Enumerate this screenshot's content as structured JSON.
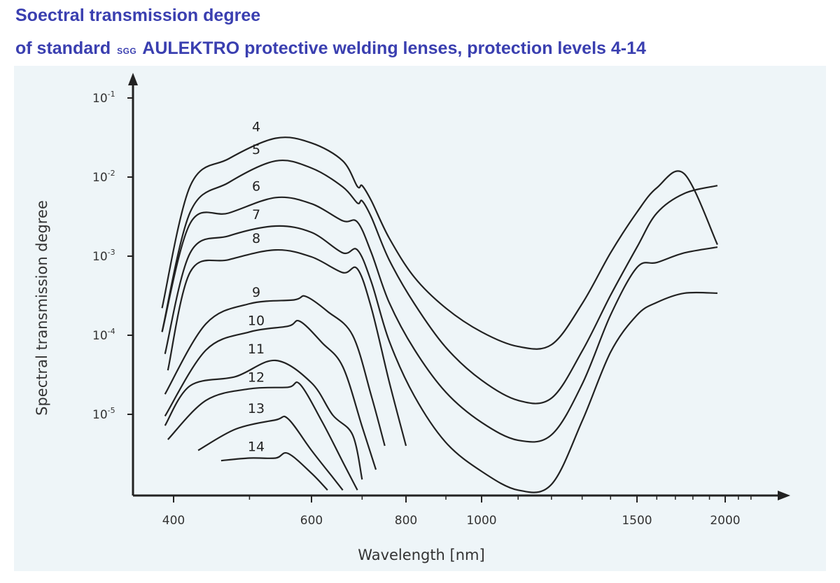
{
  "title_line1": "Soectral transmission degree",
  "title_line2_prefix": "of standard",
  "title_line2_brand_small": "SGG",
  "title_line2_rest": "AULEKTRO protective welding lenses, protection levels 4-14",
  "colors": {
    "title": "#3a3fb0",
    "panel": "#eef5f8",
    "curves": "#222222"
  },
  "chart_data": {
    "type": "line",
    "xlabel": "Wavelength [nm]",
    "ylabel": "Spectral transmission  degree",
    "x_scale": "log",
    "y_scale": "log",
    "x_ticks": [
      400,
      600,
      800,
      1000,
      1500,
      2000
    ],
    "x_tick_labels": [
      "400",
      "600",
      "800",
      "1000",
      "1500",
      "2000"
    ],
    "y_ticks": [
      0.1,
      0.01,
      0.001,
      0.0001,
      1e-05
    ],
    "y_tick_labels": [
      "10-1",
      "10-2",
      "10-3",
      "10-4",
      "10-5"
    ],
    "xlim": [
      350,
      2300
    ],
    "ylim": [
      1e-06,
      0.15
    ],
    "series": [
      {
        "name": "4",
        "points": [
          [
            380,
            0.00022
          ],
          [
            420,
            0.0077
          ],
          [
            470,
            0.017
          ],
          [
            540,
            0.031
          ],
          [
            600,
            0.027
          ],
          [
            660,
            0.016
          ],
          [
            690,
            0.0076
          ],
          [
            700,
            0.0078
          ],
          [
            720,
            0.005
          ],
          [
            760,
            0.0017
          ],
          [
            820,
            0.00054
          ],
          [
            900,
            0.00022
          ],
          [
            1000,
            0.00011
          ],
          [
            1100,
            7.2e-05
          ],
          [
            1200,
            7.6e-05
          ],
          [
            1300,
            0.00025
          ],
          [
            1400,
            0.0011
          ],
          [
            1500,
            0.0036
          ],
          [
            1600,
            0.0073
          ],
          [
            1750,
            0.011
          ],
          [
            1950,
            0.0014
          ]
        ]
      },
      {
        "name": "5",
        "points": [
          [
            380,
            0.00011
          ],
          [
            420,
            0.0036
          ],
          [
            470,
            0.0085
          ],
          [
            540,
            0.016
          ],
          [
            600,
            0.013
          ],
          [
            660,
            0.0075
          ],
          [
            690,
            0.0047
          ],
          [
            700,
            0.005
          ],
          [
            720,
            0.0031
          ],
          [
            760,
            0.0009
          ],
          [
            820,
            0.00025
          ],
          [
            900,
            7e-05
          ],
          [
            1000,
            2.7e-05
          ],
          [
            1100,
            1.5e-05
          ],
          [
            1200,
            1.6e-05
          ],
          [
            1300,
            6.3e-05
          ],
          [
            1400,
            0.00032
          ],
          [
            1500,
            0.0013
          ],
          [
            1600,
            0.0035
          ],
          [
            1750,
            0.0062
          ],
          [
            1950,
            0.0078
          ]
        ]
      },
      {
        "name": "6",
        "points": [
          [
            380,
            0.00011
          ],
          [
            420,
            0.0026
          ],
          [
            470,
            0.0035
          ],
          [
            540,
            0.0055
          ],
          [
            600,
            0.0046
          ],
          [
            660,
            0.0028
          ],
          [
            690,
            0.0027
          ],
          [
            720,
            0.0011
          ],
          [
            760,
            0.00026
          ],
          [
            820,
            6.6e-05
          ],
          [
            900,
            1.9e-05
          ],
          [
            1000,
            7.9e-06
          ],
          [
            1100,
            4.7e-06
          ],
          [
            1200,
            5.5e-06
          ],
          [
            1300,
            2.4e-05
          ],
          [
            1400,
            0.00018
          ],
          [
            1500,
            0.00072
          ],
          [
            1600,
            0.00083
          ],
          [
            1750,
            0.0011
          ],
          [
            1950,
            0.0013
          ]
        ]
      },
      {
        "name": "7",
        "points": [
          [
            385,
            5.8e-05
          ],
          [
            420,
            0.0011
          ],
          [
            470,
            0.0018
          ],
          [
            540,
            0.0024
          ],
          [
            600,
            0.002
          ],
          [
            660,
            0.0011
          ],
          [
            690,
            0.0012
          ],
          [
            720,
            0.00047
          ],
          [
            760,
            8.5e-05
          ],
          [
            820,
            1.7e-05
          ],
          [
            900,
            4.4e-06
          ],
          [
            1000,
            1.9e-06
          ],
          [
            1100,
            1.1e-06
          ],
          [
            1200,
            1.3e-06
          ],
          [
            1300,
            8.2e-06
          ],
          [
            1400,
            6.1e-05
          ],
          [
            1500,
            0.00018
          ],
          [
            1600,
            0.00026
          ],
          [
            1750,
            0.00034
          ],
          [
            1950,
            0.00034
          ]
        ]
      },
      {
        "name": "8",
        "points": [
          [
            390,
            3.6e-05
          ],
          [
            420,
            0.00063
          ],
          [
            470,
            0.0009
          ],
          [
            540,
            0.0012
          ],
          [
            600,
            0.00098
          ],
          [
            660,
            0.00062
          ],
          [
            690,
            0.00069
          ],
          [
            720,
            0.00022
          ],
          [
            760,
            2.6e-05
          ],
          [
            800,
            4e-06
          ]
        ]
      },
      {
        "name": "9",
        "points": [
          [
            385,
            1.8e-05
          ],
          [
            440,
            0.00014
          ],
          [
            500,
            0.00025
          ],
          [
            570,
            0.00028
          ],
          [
            590,
            0.00031
          ],
          [
            630,
            0.0002
          ],
          [
            680,
            0.0001
          ],
          [
            720,
            1.7e-05
          ],
          [
            750,
            4e-06
          ]
        ]
      },
      {
        "name": "10",
        "points": [
          [
            385,
            9.5e-06
          ],
          [
            440,
            6.5e-05
          ],
          [
            500,
            0.00011
          ],
          [
            560,
            0.00013
          ],
          [
            580,
            0.00015
          ],
          [
            620,
            8e-05
          ],
          [
            660,
            4e-05
          ],
          [
            700,
            7e-06
          ],
          [
            730,
            2e-06
          ]
        ]
      },
      {
        "name": "11",
        "points": [
          [
            385,
            7.2e-06
          ],
          [
            420,
            2.3e-05
          ],
          [
            480,
            3e-05
          ],
          [
            540,
            4.8e-05
          ],
          [
            600,
            2.5e-05
          ],
          [
            640,
            9.8e-06
          ],
          [
            680,
            5.5e-06
          ],
          [
            700,
            1.5e-06
          ]
        ]
      },
      {
        "name": "12",
        "points": [
          [
            390,
            4.8e-06
          ],
          [
            440,
            1.5e-05
          ],
          [
            500,
            2.1e-05
          ],
          [
            560,
            2.2e-05
          ],
          [
            580,
            2.4e-05
          ],
          [
            620,
            8e-06
          ],
          [
            660,
            2.5e-06
          ],
          [
            690,
            1.1e-06
          ]
        ]
      },
      {
        "name": "13",
        "points": [
          [
            430,
            3.5e-06
          ],
          [
            480,
            6.5e-06
          ],
          [
            540,
            8.5e-06
          ],
          [
            560,
            8.8e-06
          ],
          [
            600,
            3.5e-06
          ],
          [
            640,
            1.6e-06
          ],
          [
            660,
            1.1e-06
          ]
        ]
      },
      {
        "name": "14",
        "points": [
          [
            460,
            2.6e-06
          ],
          [
            500,
            2.8e-06
          ],
          [
            540,
            2.8e-06
          ],
          [
            560,
            3.2e-06
          ],
          [
            600,
            1.8e-06
          ],
          [
            630,
            1.1e-06
          ]
        ]
      }
    ]
  }
}
